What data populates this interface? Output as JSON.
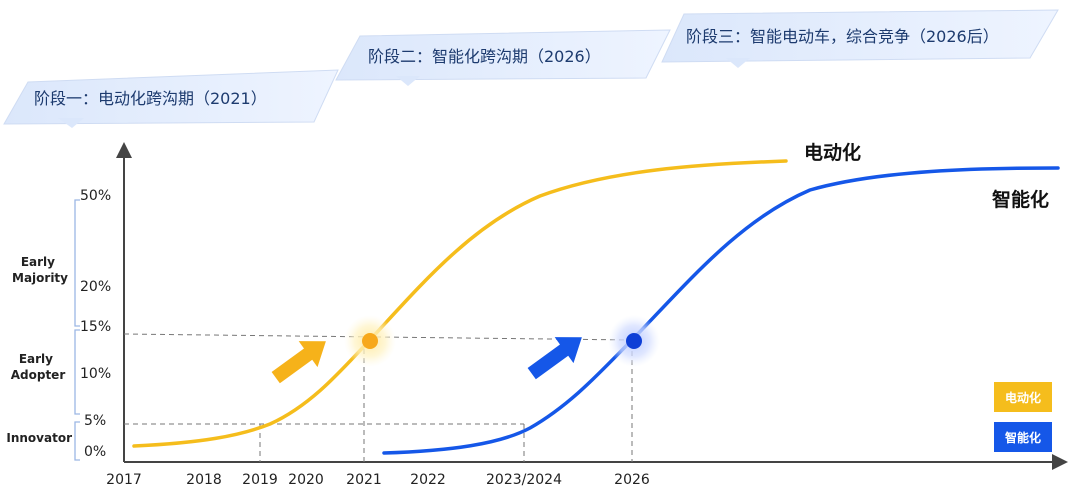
{
  "chart_data": {
    "type": "line",
    "x_ticks": [
      "2017",
      "2018",
      "2019",
      "2020",
      "2021",
      "2022",
      "2023/2024",
      "2026"
    ],
    "y_ticks": [
      "0%",
      "5%",
      "10%",
      "15%",
      "20%",
      "50%"
    ],
    "segments": [
      "Innovator",
      "Early Adopter",
      "Early Majority"
    ],
    "stages": [
      "阶段一：电动化跨沟期（2021）",
      "阶段二：智能化跨沟期（2026）",
      "阶段三：智能电动车，综合竞争（2026后）"
    ],
    "series": [
      {
        "name": "电动化",
        "color": "#f5bd1c",
        "points": [
          [
            "2017",
            0.5
          ],
          [
            "2018",
            1.2
          ],
          [
            "2019",
            3.0
          ],
          [
            "2020",
            8
          ],
          [
            "2021",
            14
          ],
          [
            "2022",
            27
          ],
          [
            "2023/2024",
            45
          ],
          [
            "2026",
            52
          ]
        ],
        "cross_chasm": {
          "x": "2021",
          "y": "14%"
        }
      },
      {
        "name": "智能化",
        "color": "#1557e8",
        "points": [
          [
            "2020",
            0.2
          ],
          [
            "2021",
            0.8
          ],
          [
            "2022",
            1.8
          ],
          [
            "2023/2024",
            4.5
          ],
          [
            "2026",
            14
          ],
          [
            "2027",
            40
          ]
        ],
        "cross_chasm": {
          "x": "2026",
          "y": "14%"
        }
      }
    ],
    "legend": [
      "电动化",
      "智能化"
    ],
    "legend_position": "bottom-right"
  }
}
